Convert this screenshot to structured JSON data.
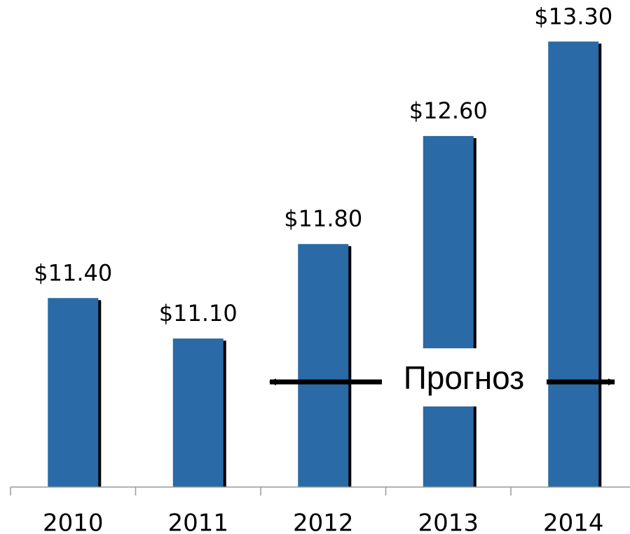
{
  "chart_data": {
    "type": "bar",
    "categories": [
      "2010",
      "2011",
      "2012",
      "2013",
      "2014"
    ],
    "values": [
      11.4,
      11.1,
      11.8,
      12.6,
      13.3
    ],
    "value_labels": [
      "$11.40",
      "$11.10",
      "$11.80",
      "$12.60",
      "$13.30"
    ],
    "color": "#2a6aa6",
    "ylim": [
      10,
      13.4
    ],
    "annotation": "Прогноз"
  }
}
